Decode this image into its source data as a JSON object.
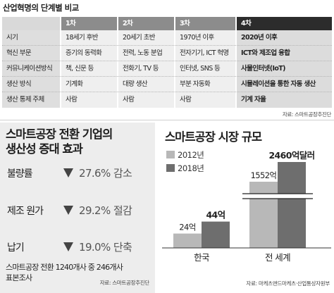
{
  "table": {
    "title": "산업혁명의 단계별 비교",
    "headers": [
      "",
      "1차",
      "2차",
      "3차",
      "4차"
    ],
    "rows": [
      [
        "시기",
        "18세기 후반",
        "20세기 초반",
        "1970년 이후",
        "2020년 이후"
      ],
      [
        "혁신 부문",
        "증기의 동력화",
        "전력, 노동 분업",
        "전자기기, ICT 혁명",
        "ICT와 제조업 융합"
      ],
      [
        "커뮤니케이션방식",
        "책, 신문 등",
        "전화기, TV 등",
        "인터넷, SNS 등",
        "사물인터넷(IoT)"
      ],
      [
        "생산 방식",
        "기계화",
        "대량 생산",
        "부분 자동화",
        "시뮬레이션을 통한 자동 생산"
      ],
      [
        "생산 통제 주체",
        "사람",
        "사람",
        "사람",
        "기계 자율"
      ]
    ],
    "source": "자료: 스마트공장추진단"
  },
  "productivity": {
    "title_line1": "스마트공장 전환 기업의",
    "title_line2": "생산성 증대 효과",
    "metrics": [
      {
        "label": "불량률",
        "value": "27.6% 감소"
      },
      {
        "label": "제조 원가",
        "value": "29.2% 절감"
      },
      {
        "label": "납기",
        "value": "19.0% 단축"
      }
    ],
    "note_line1": "스마트공장 전환 1240개사 중 246개사",
    "note_line2": "표본조사",
    "source": "자료: 스마트공장추진단"
  },
  "market": {
    "title": "스마트공장 시장 규모",
    "source": "자료: 마케츠앤드마케츠·산업통상자원부"
  },
  "colors": {
    "bar_2012": "#b8b8b8",
    "bar_2018": "#6e6e6e",
    "table_head": "#8c8c8c",
    "table_head_dark": "#2c2c2c",
    "panel_bg": "#ededed"
  },
  "chart_data": {
    "type": "bar",
    "title": "스마트공장 시장 규모",
    "categories": [
      "한국",
      "전 세계"
    ],
    "series": [
      {
        "name": "2012년",
        "values": [
          24,
          1552
        ],
        "labels": [
          "24억",
          "1552억"
        ]
      },
      {
        "name": "2018년",
        "values": [
          44,
          2460
        ],
        "labels": [
          "44억",
          "2460억달러"
        ]
      }
    ],
    "axis_break": true,
    "legend_position": "top-left",
    "grid": false,
    "xlabel": "",
    "ylabel": ""
  }
}
